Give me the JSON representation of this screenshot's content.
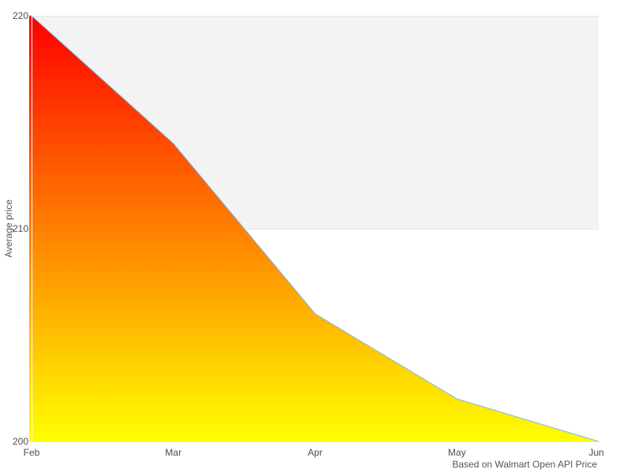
{
  "chart_data": {
    "type": "area",
    "categories": [
      "Feb",
      "Mar",
      "Apr",
      "May",
      "Jun"
    ],
    "values": [
      220,
      214,
      206,
      202,
      200
    ],
    "title": "",
    "xlabel": "",
    "ylabel": "Average price",
    "ylim": [
      200,
      220
    ],
    "y_ticks": [
      220,
      210,
      200
    ],
    "legend": "none",
    "grid": "horizontal gridlines at y ticks; gray alternate band between 210 and 220",
    "colors": {
      "line": "#7cb5ec",
      "gradient_top": "#ff0000",
      "gradient_bottom": "#ffff00",
      "band": "#f3f3f3",
      "gridline": "#e6e6e6",
      "axis_overlay_line": "#ffffff",
      "label": "#4d4d4d"
    }
  },
  "credits": "Based on Walmart Open API Price"
}
